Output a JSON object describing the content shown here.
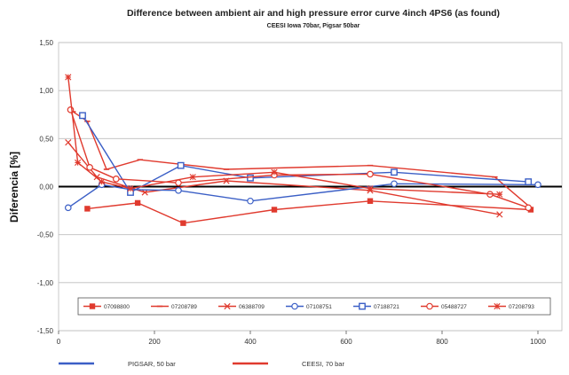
{
  "chart_data": {
    "type": "line",
    "title": "Difference between ambient air and high pressure error curve 4inch  4PS6  (as found)",
    "subtitle": "CEESI Iowa 70bar, Pigsar 50bar",
    "ylabel": "Diferencia [%]",
    "xlabel": "",
    "xlim": [
      0,
      1050
    ],
    "ylim": [
      -1.5,
      1.5
    ],
    "xticks": [
      0,
      200,
      400,
      600,
      800,
      1000
    ],
    "yticks": [
      1.5,
      1.0,
      0.5,
      0.0,
      -0.5,
      -1.0,
      -1.5
    ],
    "ytick_labels": [
      "1,50",
      "1,00",
      "0,50",
      "0,00",
      "-0,50",
      "-1,00",
      "-1,50"
    ],
    "xtick_labels": [
      "0",
      "200",
      "400",
      "600",
      "800",
      "1000"
    ],
    "grid": true,
    "legend_position": "bottom-inside",
    "colors": {
      "red": "#e03a2e",
      "blue": "#3b5fc6",
      "axis": "#000000",
      "grid": "#bdbdbd"
    },
    "series": [
      {
        "name": "07098800",
        "color": "#e03a2e",
        "marker": "square-filled",
        "x": [
          60,
          165,
          260,
          450,
          650,
          985
        ],
        "y": [
          -0.23,
          -0.17,
          -0.38,
          -0.24,
          -0.15,
          -0.24
        ]
      },
      {
        "name": "07208789",
        "color": "#e03a2e",
        "marker": "dash",
        "x": [
          30,
          60,
          100,
          170,
          350,
          650,
          910,
          985
        ],
        "y": [
          0.78,
          0.68,
          0.18,
          0.28,
          0.18,
          0.22,
          0.1,
          -0.22
        ]
      },
      {
        "name": "06388709",
        "color": "#e03a2e",
        "marker": "x",
        "x": [
          20,
          80,
          180,
          350,
          650,
          920
        ],
        "y": [
          0.46,
          0.1,
          -0.06,
          0.06,
          -0.04,
          -0.29
        ]
      },
      {
        "name": "07108751",
        "color": "#3b5fc6",
        "marker": "circle-open",
        "x": [
          20,
          90,
          150,
          250,
          400,
          700,
          1000
        ],
        "y": [
          -0.22,
          0.02,
          -0.03,
          -0.04,
          -0.15,
          0.03,
          0.02
        ]
      },
      {
        "name": "07188721",
        "color": "#3b5fc6",
        "marker": "square-open",
        "x": [
          50,
          150,
          255,
          400,
          700,
          980
        ],
        "y": [
          0.74,
          -0.06,
          0.22,
          0.09,
          0.15,
          0.05
        ]
      },
      {
        "name": "05488727",
        "color": "#e03a2e",
        "marker": "circle-open",
        "x": [
          25,
          65,
          120,
          250,
          450,
          650,
          900,
          980
        ],
        "y": [
          0.8,
          0.2,
          0.08,
          0.04,
          0.12,
          0.13,
          -0.08,
          -0.22
        ]
      },
      {
        "name": "07208793",
        "color": "#e03a2e",
        "marker": "star",
        "x": [
          20,
          40,
          90,
          150,
          280,
          450,
          650,
          920
        ],
        "y": [
          1.14,
          0.25,
          0.05,
          -0.02,
          0.1,
          0.15,
          -0.02,
          -0.08
        ]
      }
    ],
    "legend2": [
      {
        "label": "PIGSAR, 50 bar",
        "color": "#3b5fc6"
      },
      {
        "label": "CEESI, 70 bar",
        "color": "#e03a2e"
      }
    ]
  }
}
